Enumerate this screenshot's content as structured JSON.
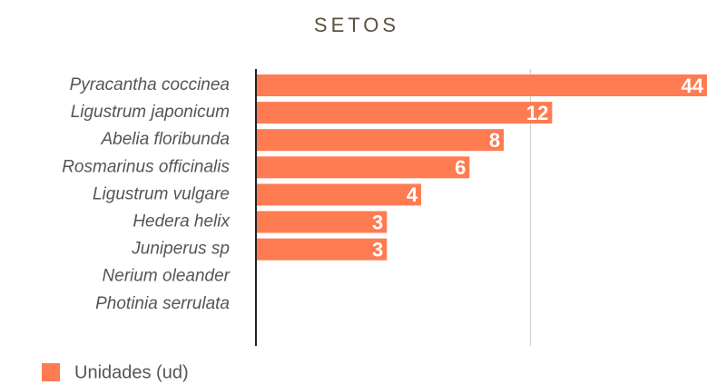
{
  "chart_data": {
    "type": "hbar",
    "title": "SETOS",
    "categories": [
      "Pyracantha coccinea",
      "Ligustrum japonicum",
      "Abelia floribunda",
      "Rosmarinus officinalis",
      "Ligustrum vulgare",
      "Hedera helix",
      "Juniperus sp",
      "Nerium oleander",
      "Photinia serrulata"
    ],
    "series": [
      {
        "name": "Unidades (ud)",
        "color": "#ff7b52",
        "values": [
          44,
          12,
          8,
          6,
          4,
          3,
          3,
          null,
          null
        ]
      }
    ],
    "xlim": [
      1,
      44
    ],
    "xscale": "log",
    "xticks": [
      10
    ],
    "tick_labels": false,
    "grid": true,
    "legend": "bottom-left"
  }
}
